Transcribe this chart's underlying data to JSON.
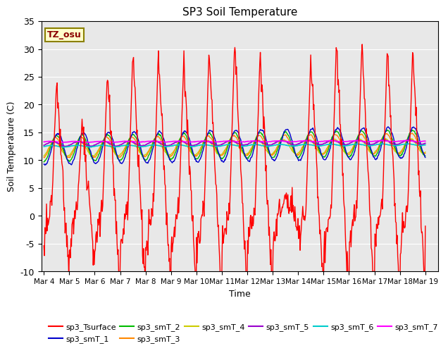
{
  "title": "SP3 Soil Temperature",
  "xlabel": "Time",
  "ylabel": "Soil Temperature (C)",
  "ylim": [
    -10,
    35
  ],
  "annotation_text": "TZ_osu",
  "annotation_color": "#8B0000",
  "annotation_bg": "#FFFFCC",
  "annotation_border": "#8B8000",
  "background_color": "#E8E8E8",
  "series_colors": {
    "sp3_Tsurface": "#FF0000",
    "sp3_smT_1": "#0000CC",
    "sp3_smT_2": "#00BB00",
    "sp3_smT_3": "#FF8800",
    "sp3_smT_4": "#CCCC00",
    "sp3_smT_5": "#9900CC",
    "sp3_smT_6": "#00CCCC",
    "sp3_smT_7": "#FF00FF"
  },
  "xtick_labels": [
    "Mar 4",
    "Mar 5",
    "Mar 6",
    "Mar 7",
    "Mar 8",
    "Mar 9",
    "Mar 10",
    "Mar 11",
    "Mar 12",
    "Mar 13",
    "Mar 14",
    "Mar 15",
    "Mar 16",
    "Mar 17",
    "Mar 18",
    "Mar 19"
  ],
  "ytick_labels": [
    -10,
    -5,
    0,
    5,
    10,
    15,
    20,
    25,
    30,
    35
  ],
  "legend_labels": [
    "sp3_Tsurface",
    "sp3_smT_1",
    "sp3_smT_2",
    "sp3_smT_3",
    "sp3_smT_4",
    "sp3_smT_5",
    "sp3_smT_6",
    "sp3_smT_7"
  ]
}
